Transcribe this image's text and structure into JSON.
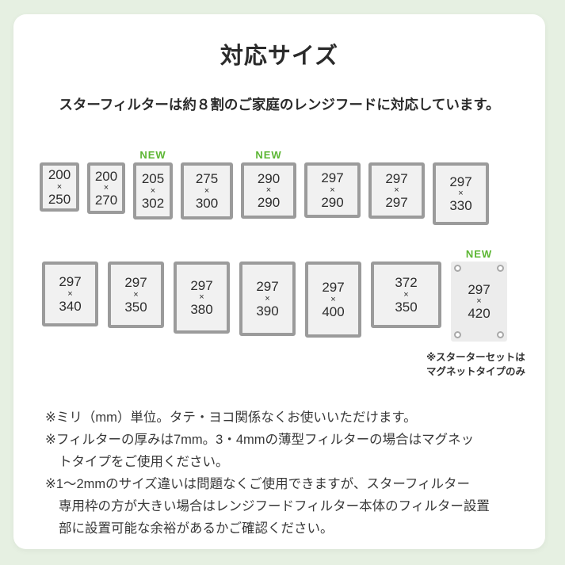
{
  "page": {
    "title": "対応サイズ",
    "subtitle": "スターフィルターは約８割のご家庭のレンジフードに対応しています。"
  },
  "sizes": {
    "unit": "mm",
    "times_symbol": "×",
    "new_badge": "NEW",
    "row1": [
      {
        "w": "200",
        "h": "250"
      },
      {
        "w": "200",
        "h": "270"
      },
      {
        "w": "205",
        "h": "302",
        "new": true
      },
      {
        "w": "275",
        "h": "300"
      },
      {
        "w": "290",
        "h": "290",
        "new": true
      },
      {
        "w": "297",
        "h": "290"
      },
      {
        "w": "297",
        "h": "297"
      },
      {
        "w": "297",
        "h": "330"
      }
    ],
    "row2": [
      {
        "w": "297",
        "h": "340"
      },
      {
        "w": "297",
        "h": "350"
      },
      {
        "w": "297",
        "h": "380"
      },
      {
        "w": "297",
        "h": "390"
      },
      {
        "w": "297",
        "h": "400"
      },
      {
        "w": "372",
        "h": "350"
      },
      {
        "w": "297",
        "h": "420",
        "new": true,
        "magnet": true
      }
    ],
    "magnet_caption": [
      "※スターターセットは",
      "マグネットタイプのみ"
    ]
  },
  "notes": [
    [
      "※ミリ（mm）単位。タテ・ヨコ関係なくお使いいただけます。"
    ],
    [
      "※フィルターの厚みは7mm。3・4mmの薄型フィルターの場合はマグネッ",
      "トタイプをご使用ください。"
    ],
    [
      "※1〜2mmのサイズ違いは問題なくご使用できますが、スターフィルター",
      "専用枠の方が大きい場合はレンジフードフィルター本体のフィルター設置",
      "部に設置可能な余裕があるかご確認ください。"
    ]
  ],
  "colors": {
    "background": "#e6f0e2",
    "panel": "#ffffff",
    "card_border": "#9b9b9b",
    "card_fill": "#f1f1f1",
    "new_green": "#5cb633",
    "text": "#2b2b2b"
  }
}
